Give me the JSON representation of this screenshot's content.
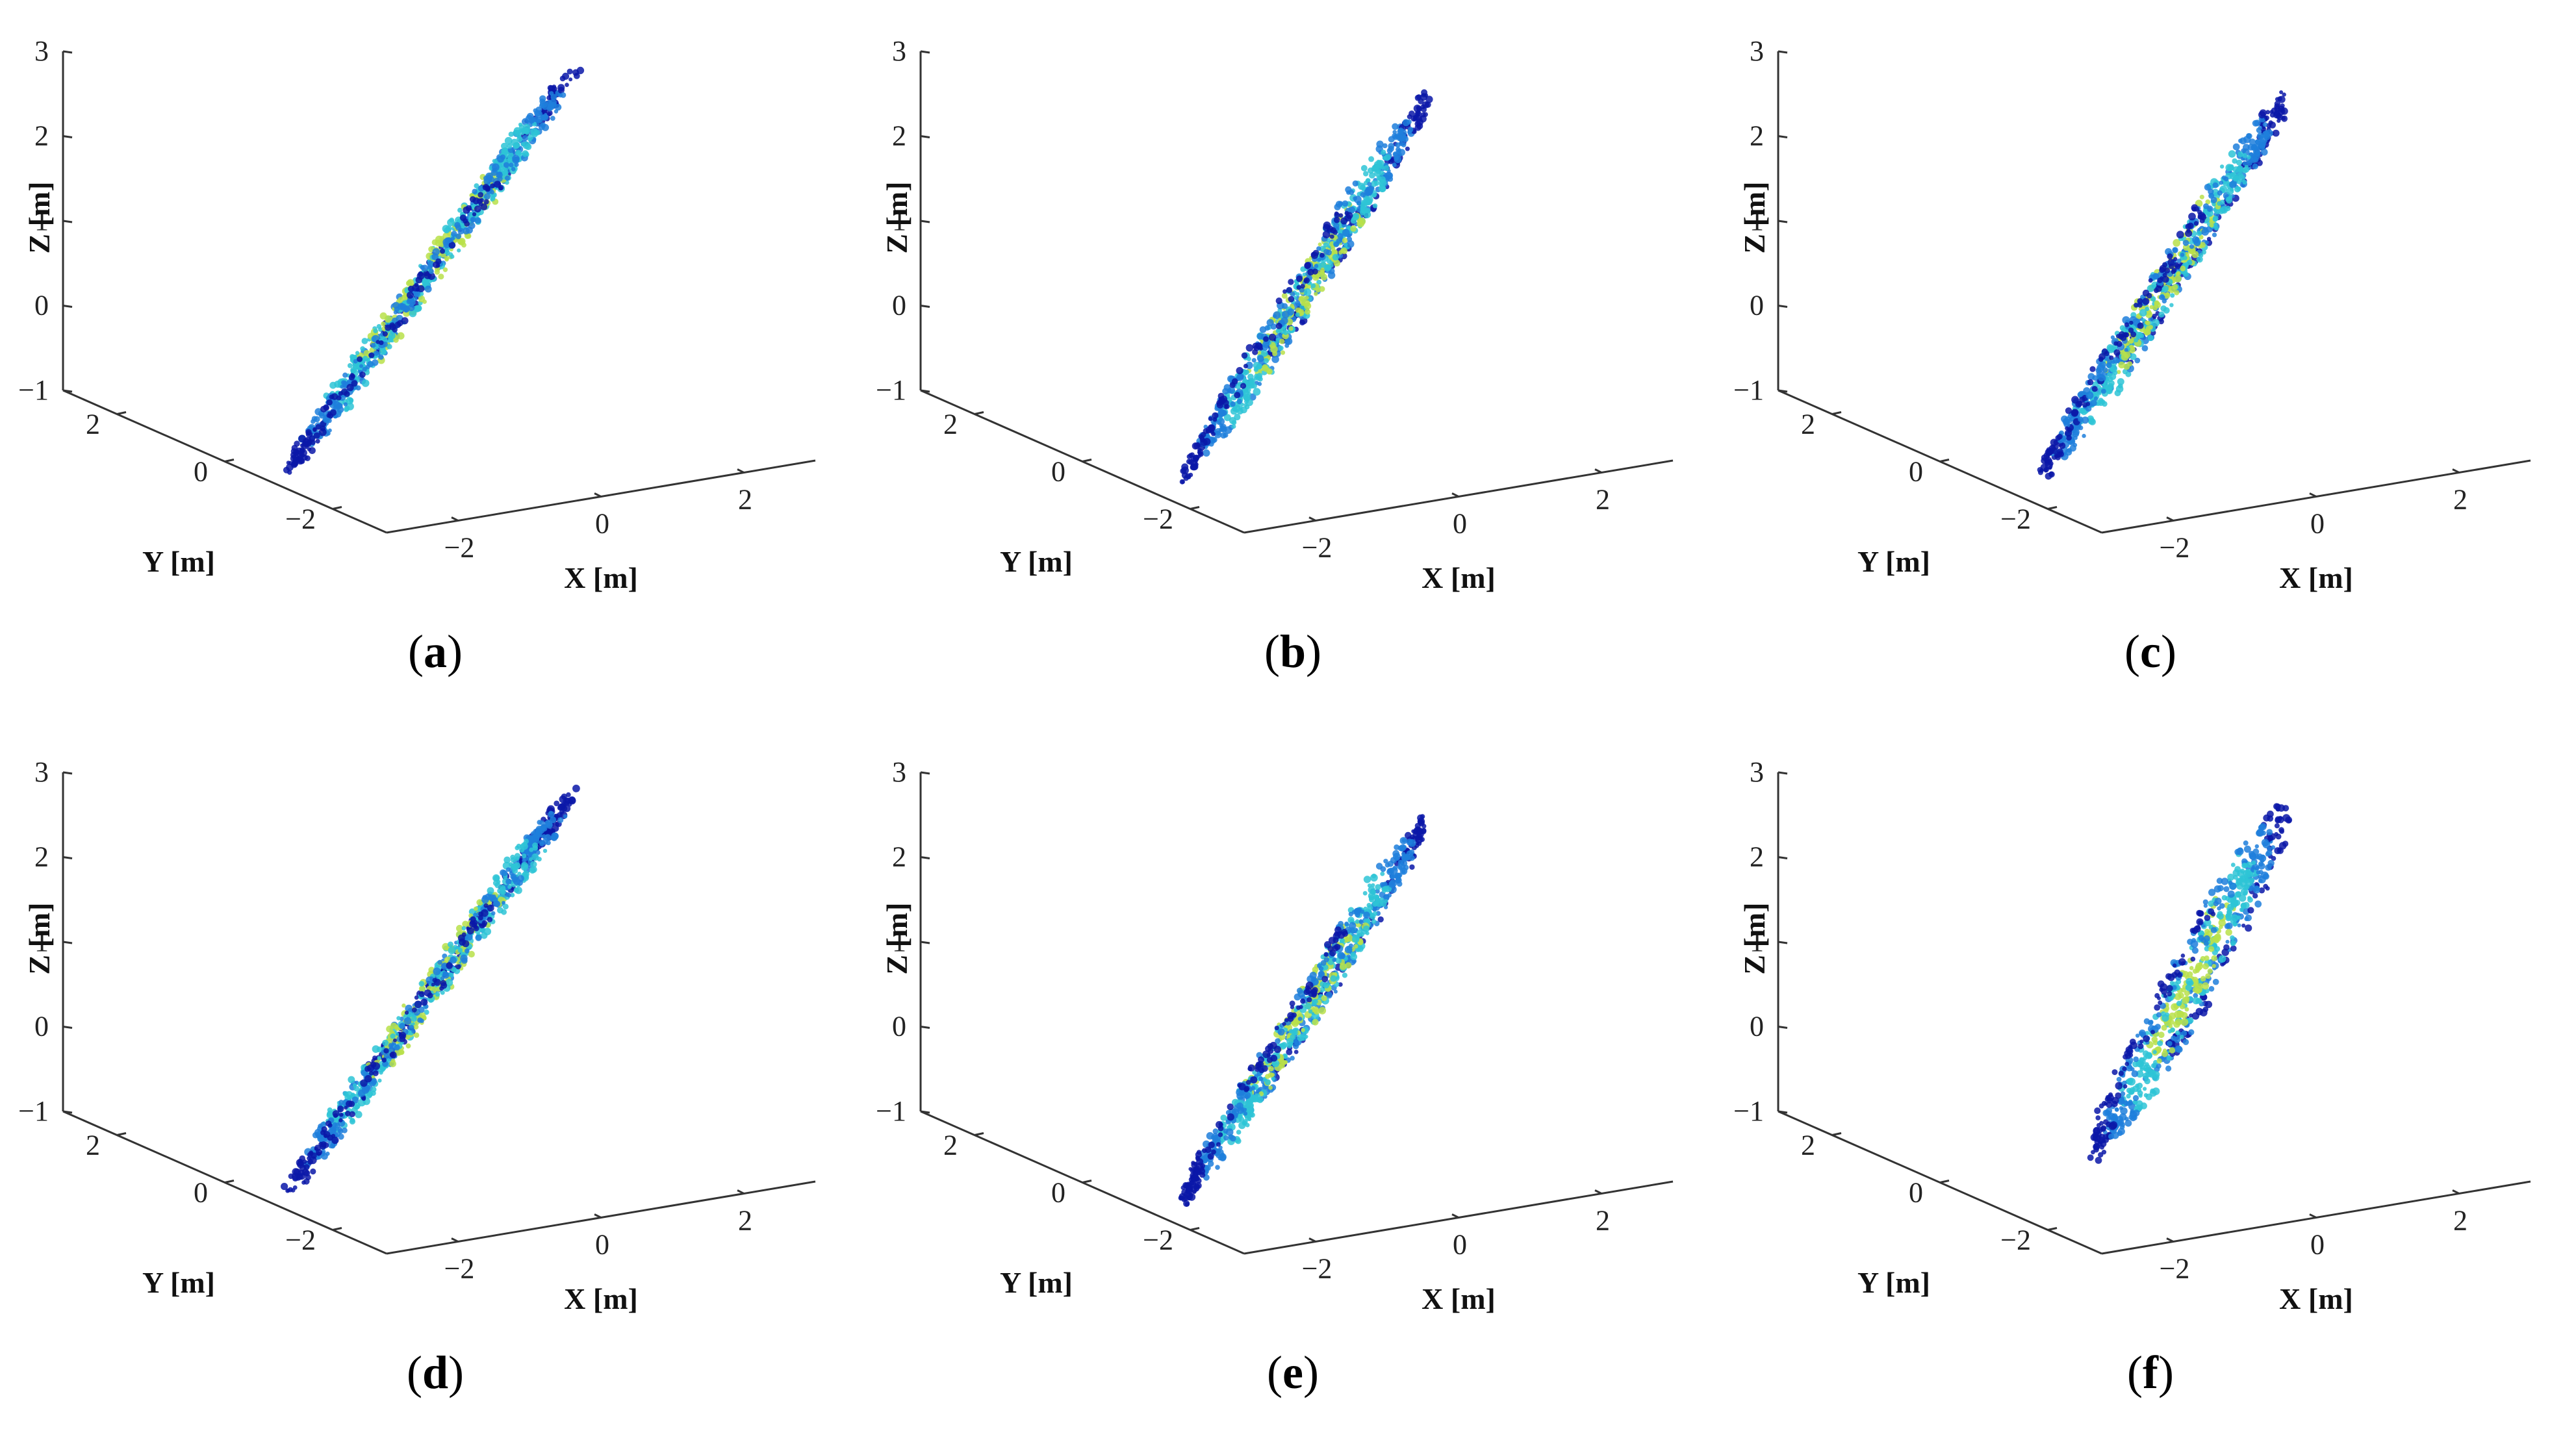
{
  "figure": {
    "panels": [
      "a",
      "b",
      "c",
      "d",
      "e",
      "f"
    ]
  },
  "colors": {
    "low": "#0a18a8",
    "mid": "#1f7fdc",
    "high": "#2ec4d6",
    "peak": "#b8e04a"
  },
  "chart_data": [
    {
      "panel": "a",
      "caption_open": "(",
      "caption_letter": "a",
      "caption_close": ")",
      "type": "scatter",
      "dims": 3,
      "xlabel": "X [m]",
      "ylabel": "Y [m]",
      "zlabel": "Z [m]",
      "xlim": [
        -3,
        3
      ],
      "ylim": [
        -3,
        3
      ],
      "zlim": [
        -1,
        3
      ],
      "xticks": [
        "−2",
        "0",
        "2"
      ],
      "yticks": [
        "2",
        "0",
        "−2"
      ],
      "zticks": [
        "3",
        "2",
        "1",
        "0",
        "−1"
      ],
      "xticks_v": [
        -2,
        0,
        2
      ],
      "yticks_v": [
        2,
        0,
        -2
      ],
      "zticks_v": [
        3,
        2,
        1,
        0,
        -1
      ],
      "shape": "diagonal-band",
      "stripe_count": 14
    },
    {
      "panel": "b",
      "caption_open": "(",
      "caption_letter": "b",
      "caption_close": ")",
      "type": "scatter",
      "dims": 3,
      "xlabel": "X [m]",
      "ylabel": "Y [m]",
      "zlabel": "Z [m]",
      "xlim": [
        -3,
        3
      ],
      "ylim": [
        -3,
        3
      ],
      "zlim": [
        -1,
        3
      ],
      "xticks": [
        "−2",
        "0",
        "2"
      ],
      "yticks": [
        "2",
        "0",
        "−2"
      ],
      "zticks": [
        "3",
        "2",
        "1",
        "0",
        "−1"
      ],
      "xticks_v": [
        -2,
        0,
        2
      ],
      "yticks_v": [
        2,
        0,
        -2
      ],
      "zticks_v": [
        3,
        2,
        1,
        0,
        -1
      ],
      "shape": "s-shape",
      "stripe_count": 13
    },
    {
      "panel": "c",
      "caption_open": "(",
      "caption_letter": "c",
      "caption_close": ")",
      "type": "scatter",
      "dims": 3,
      "xlabel": "X [m]",
      "ylabel": "Y [m]",
      "zlabel": "Z [m]",
      "xlim": [
        -3,
        3
      ],
      "ylim": [
        -3,
        3
      ],
      "zlim": [
        -1,
        3
      ],
      "xticks": [
        "−2",
        "0",
        "2"
      ],
      "yticks": [
        "2",
        "0",
        "−2"
      ],
      "zticks": [
        "3",
        "2",
        "1",
        "0",
        "−1"
      ],
      "xticks_v": [
        -2,
        0,
        2
      ],
      "yticks_v": [
        2,
        0,
        -2
      ],
      "zticks_v": [
        3,
        2,
        1,
        0,
        -1
      ],
      "shape": "s-shape",
      "stripe_count": 13
    },
    {
      "panel": "d",
      "caption_open": "(",
      "caption_letter": "d",
      "caption_close": ")",
      "type": "scatter",
      "dims": 3,
      "xlabel": "X [m]",
      "ylabel": "Y [m]",
      "zlabel": "Z [m]",
      "xlim": [
        -3,
        3
      ],
      "ylim": [
        -3,
        3
      ],
      "zlim": [
        -1,
        3
      ],
      "xticks": [
        "−2",
        "0",
        "2"
      ],
      "yticks": [
        "2",
        "0",
        "−2"
      ],
      "zticks": [
        "3",
        "2",
        "1",
        "0",
        "−1"
      ],
      "xticks_v": [
        -2,
        0,
        2
      ],
      "yticks_v": [
        2,
        0,
        -2
      ],
      "zticks_v": [
        3,
        2,
        1,
        0,
        -1
      ],
      "shape": "diagonal-band",
      "stripe_count": 14
    },
    {
      "panel": "e",
      "caption_open": "(",
      "caption_letter": "e",
      "caption_close": ")",
      "type": "scatter",
      "dims": 3,
      "xlabel": "X [m]",
      "ylabel": "Y [m]",
      "zlabel": "Z [m]",
      "xlim": [
        -3,
        3
      ],
      "ylim": [
        -3,
        3
      ],
      "zlim": [
        -1,
        3
      ],
      "xticks": [
        "−2",
        "0",
        "2"
      ],
      "yticks": [
        "2",
        "0",
        "−2"
      ],
      "zticks": [
        "3",
        "2",
        "1",
        "0",
        "−1"
      ],
      "xticks_v": [
        -2,
        0,
        2
      ],
      "yticks_v": [
        2,
        0,
        -2
      ],
      "zticks_v": [
        3,
        2,
        1,
        0,
        -1
      ],
      "shape": "s-shape",
      "stripe_count": 13
    },
    {
      "panel": "f",
      "caption_open": "(",
      "caption_letter": "f",
      "caption_close": ")",
      "type": "scatter",
      "dims": 3,
      "xlabel": "X [m]",
      "ylabel": "Y [m]",
      "zlabel": "Z [m]",
      "xlim": [
        -3,
        3
      ],
      "ylim": [
        -3,
        3
      ],
      "zlim": [
        -1,
        3
      ],
      "xticks": [
        "−2",
        "0",
        "2"
      ],
      "yticks": [
        "2",
        "0",
        "−2"
      ],
      "zticks": [
        "3",
        "2",
        "1",
        "0",
        "−1"
      ],
      "xticks_v": [
        -2,
        0,
        2
      ],
      "yticks_v": [
        2,
        0,
        -2
      ],
      "zticks_v": [
        3,
        2,
        1,
        0,
        -1
      ],
      "shape": "compact-s",
      "stripe_count": 11
    }
  ]
}
